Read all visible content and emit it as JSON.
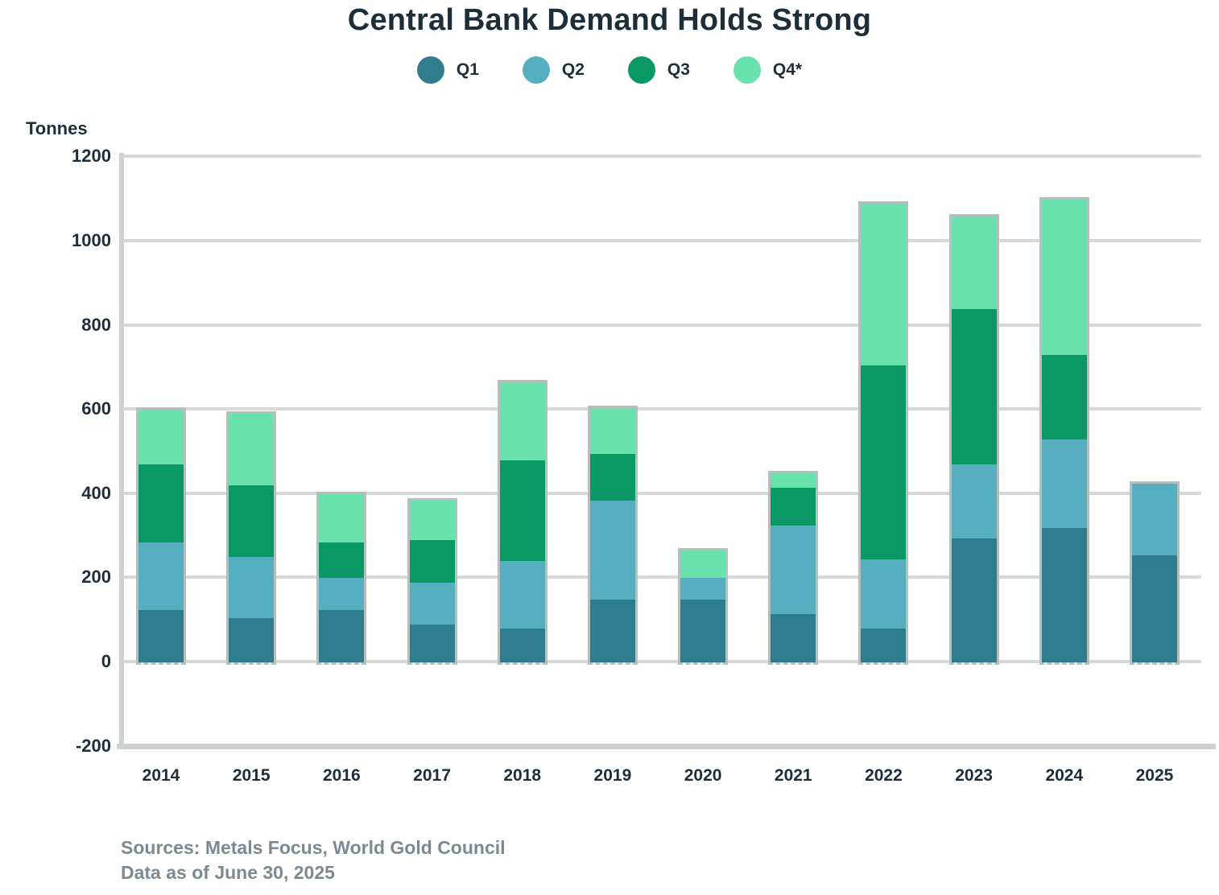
{
  "title": "Central Bank Demand Holds Strong",
  "y_axis_title": "Tonnes",
  "legend": [
    {
      "label": "Q1",
      "color": "#2F7C8C"
    },
    {
      "label": "Q2",
      "color": "#55AFBE"
    },
    {
      "label": "Q3",
      "color": "#0A9964"
    },
    {
      "label": "Q4*",
      "color": "#6AE2AE"
    }
  ],
  "footer": {
    "sources": "Sources: Metals Focus, World Gold Council",
    "note": "Data as of June 30, 2025"
  },
  "chart_data": {
    "type": "bar",
    "stacked": true,
    "title": "Central Bank Demand Holds Strong",
    "ylabel": "Tonnes",
    "ylim": [
      -200,
      1200
    ],
    "ytick_step": 200,
    "grid": true,
    "legend_position": "top",
    "categories": [
      "2014",
      "2015",
      "2016",
      "2017",
      "2018",
      "2019",
      "2020",
      "2021",
      "2022",
      "2023",
      "2024",
      "2025"
    ],
    "series": [
      {
        "name": "Q1",
        "color": "#2F7C8C",
        "values": [
          125,
          105,
          125,
          90,
          80,
          150,
          150,
          115,
          80,
          295,
          320,
          255
        ]
      },
      {
        "name": "Q2",
        "color": "#55AFBE",
        "values": [
          160,
          145,
          75,
          100,
          160,
          235,
          50,
          210,
          165,
          175,
          210,
          170
        ]
      },
      {
        "name": "Q3",
        "color": "#0A9964",
        "values": [
          185,
          170,
          85,
          100,
          240,
          110,
          0,
          90,
          460,
          370,
          200,
          0
        ]
      },
      {
        "name": "Q4",
        "color": "#6AE2AE",
        "values": [
          130,
          170,
          115,
          95,
          185,
          110,
          65,
          35,
          385,
          220,
          370,
          0
        ]
      }
    ],
    "totals": [
      600,
      590,
      400,
      385,
      665,
      605,
      265,
      450,
      1090,
      1060,
      1100,
      425
    ]
  }
}
